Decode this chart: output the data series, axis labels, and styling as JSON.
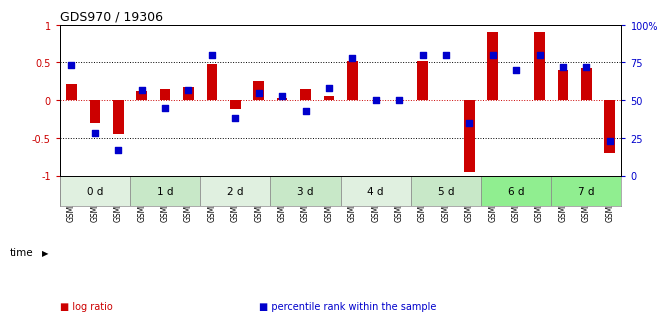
{
  "title": "GDS970 / 19306",
  "samples": [
    "GSM21882",
    "GSM21883",
    "GSM21884",
    "GSM21885",
    "GSM21886",
    "GSM21887",
    "GSM21888",
    "GSM21889",
    "GSM21890",
    "GSM21891",
    "GSM21892",
    "GSM21893",
    "GSM21894",
    "GSM21895",
    "GSM21896",
    "GSM21897",
    "GSM21898",
    "GSM21899",
    "GSM21900",
    "GSM21901",
    "GSM21902",
    "GSM21903",
    "GSM21904",
    "GSM21905"
  ],
  "log_ratio": [
    0.22,
    -0.3,
    -0.45,
    0.12,
    0.15,
    0.18,
    0.48,
    -0.12,
    0.25,
    0.03,
    0.15,
    0.05,
    0.52,
    0.0,
    0.0,
    0.52,
    0.0,
    -0.95,
    0.9,
    0.0,
    0.9,
    0.4,
    0.42,
    -0.7
  ],
  "percentile_rank": [
    73,
    28,
    17,
    57,
    45,
    57,
    80,
    38,
    55,
    53,
    43,
    58,
    78,
    50,
    50,
    80,
    80,
    35,
    80,
    70,
    80,
    72,
    72,
    23
  ],
  "time_groups": [
    {
      "label": "0 d",
      "start": 0,
      "end": 3,
      "color": "#e0f0e0"
    },
    {
      "label": "1 d",
      "start": 3,
      "end": 6,
      "color": "#c8e8c8"
    },
    {
      "label": "2 d",
      "start": 6,
      "end": 9,
      "color": "#e0f0e0"
    },
    {
      "label": "3 d",
      "start": 9,
      "end": 12,
      "color": "#c8e8c8"
    },
    {
      "label": "4 d",
      "start": 12,
      "end": 15,
      "color": "#e0f0e0"
    },
    {
      "label": "5 d",
      "start": 15,
      "end": 18,
      "color": "#c8e8c8"
    },
    {
      "label": "6 d",
      "start": 18,
      "end": 21,
      "color": "#90ee90"
    },
    {
      "label": "7 d",
      "start": 21,
      "end": 24,
      "color": "#90ee90"
    }
  ],
  "bar_color": "#cc0000",
  "dot_color": "#0000cc",
  "zero_line_color": "#cc0000",
  "bg_color": "#ffffff",
  "left_ticks": [
    -1,
    -0.5,
    0,
    0.5,
    1
  ],
  "right_ticks": [
    0,
    25,
    50,
    75,
    100
  ],
  "right_tick_labels": [
    "0",
    "25",
    "50",
    "75",
    "100%"
  ],
  "dotted_lines": [
    -0.5,
    0.5
  ],
  "legend_items": [
    {
      "label": "log ratio",
      "color": "#cc0000"
    },
    {
      "label": "percentile rank within the sample",
      "color": "#0000cc"
    }
  ]
}
